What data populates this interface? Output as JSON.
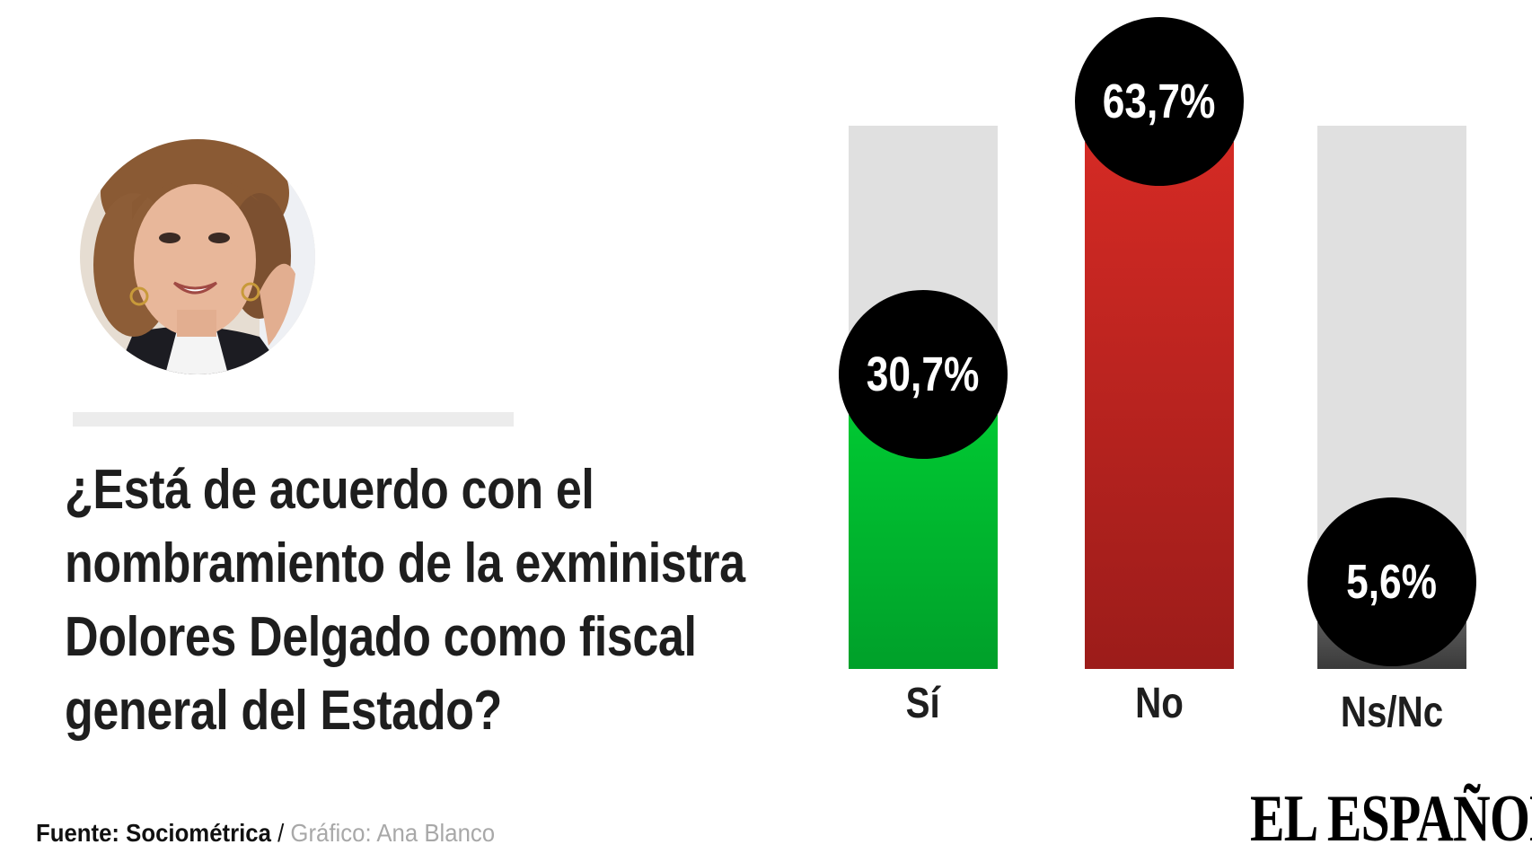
{
  "question": {
    "lines": [
      "¿Está de acuerdo con el",
      "nombramiento de la exministra",
      "Dolores Delgado como fiscal",
      "general del Estado?"
    ]
  },
  "footer": {
    "source_label": "Fuente: Sociométrica",
    "separator": " / ",
    "credit": "Gráfico: Ana Blanco"
  },
  "logo": "EL ESPAÑOL",
  "chart_data": {
    "type": "bar",
    "title": "¿Está de acuerdo con el nombramiento de la exministra Dolores Delgado como fiscal general del Estado?",
    "categories": [
      "Sí",
      "No",
      "Ns/Nc"
    ],
    "values": [
      30.7,
      63.7,
      5.6
    ],
    "data_labels": [
      "30,7%",
      "63,7%",
      "5,6%"
    ],
    "unit": "%",
    "colors": {
      "Sí": [
        "#00c832",
        "#00a02a"
      ],
      "No": [
        "#d42a24",
        "#9c1c1a"
      ],
      "Ns/Nc": [
        "#5a5a5a",
        "#3a3a3a"
      ],
      "track": "#e0e0e0",
      "label_bubble": "#000000"
    },
    "grid": false,
    "legend": "none"
  }
}
